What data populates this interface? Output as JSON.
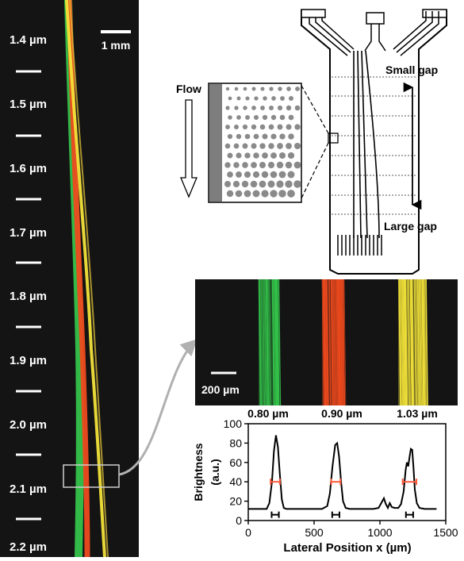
{
  "left_panel": {
    "scale_label": "1 mm",
    "gap_labels": [
      "1.4 µm",
      "1.5 µm",
      "1.6 µm",
      "1.7 µm",
      "1.8 µm",
      "1.9 µm",
      "2.0 µm",
      "2.1 µm",
      "2.2 µm"
    ]
  },
  "device": {
    "flow_label": "Flow",
    "small_gap_label": "Small gap",
    "large_gap_label": "Large gap"
  },
  "microscope": {
    "scale_label": "200 µm"
  },
  "colors": {
    "green": "#34c24a",
    "red": "#ee4a1e",
    "yellow": "#f2e23a",
    "fwhm_marker": "#ff5a3c"
  },
  "chart_data": {
    "type": "line",
    "xlabel": "Lateral Position x (µm)",
    "ylabel": "Brightness (a.u.)",
    "xlim": [
      0,
      1500
    ],
    "ylim": [
      0,
      100
    ],
    "x_ticks": [
      "0",
      "500",
      "1000",
      "1500"
    ],
    "y_ticks": [
      "0",
      "20",
      "40",
      "60",
      "80",
      "100"
    ],
    "peak_labels": [
      "0.80 µm",
      "0.90 µm",
      "1.03 µm"
    ],
    "series": [
      {
        "x": [
          0,
          100,
          140,
          160,
          180,
          195,
          210,
          225,
          240,
          255,
          270,
          290,
          320,
          400,
          560,
          600,
          620,
          640,
          660,
          675,
          690,
          705,
          720,
          740,
          770,
          850,
          950,
          990,
          1010,
          1030,
          1045,
          1060,
          1075,
          1090,
          1110,
          1140,
          1160,
          1180,
          1195,
          1205,
          1215,
          1225,
          1235,
          1245,
          1255,
          1265,
          1280,
          1300,
          1340,
          1400,
          1430
        ],
        "y": [
          12,
          12,
          12,
          18,
          40,
          72,
          88,
          76,
          48,
          22,
          13,
          12,
          12,
          12,
          12,
          15,
          28,
          56,
          78,
          80,
          66,
          40,
          20,
          13,
          12,
          12,
          12,
          13,
          18,
          23,
          17,
          13,
          18,
          14,
          13,
          13,
          17,
          30,
          52,
          60,
          56,
          66,
          74,
          73,
          55,
          32,
          18,
          13,
          12,
          12,
          12
        ]
      }
    ],
    "fwhm_bars": [
      {
        "center": 205,
        "width": 70,
        "level": 40
      },
      {
        "center": 665,
        "width": 70,
        "level": 40
      },
      {
        "center": 1225,
        "width": 105,
        "level": 40
      }
    ],
    "beam_bars": [
      {
        "center": 205,
        "width": 55,
        "level": 6
      },
      {
        "center": 665,
        "width": 55,
        "level": 6
      },
      {
        "center": 1225,
        "width": 55,
        "level": 6
      }
    ]
  }
}
